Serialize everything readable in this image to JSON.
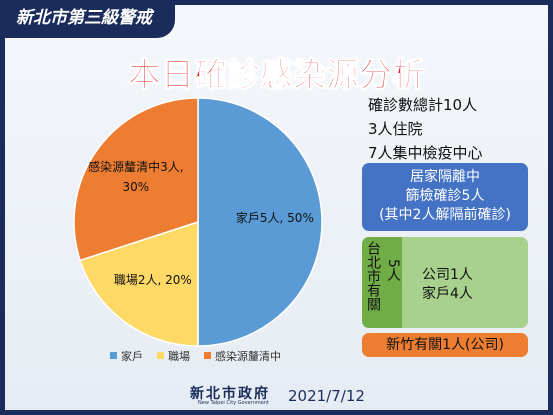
{
  "header": {
    "banner": "新北市第三級警戒",
    "title": "本日確診感染源分析"
  },
  "chart_data": {
    "type": "pie",
    "categories": [
      "家戶",
      "職場",
      "感染源釐清中"
    ],
    "values": [
      50,
      20,
      30
    ],
    "value_labels": [
      "家戶5人, 50%",
      "職場2人, 20%",
      "感染源釐清中3人,\n30%"
    ],
    "colors": [
      "#5b9bd5",
      "#ffd966",
      "#ed7d31"
    ],
    "legend": "bottom"
  },
  "summary": [
    "確診數總計10人",
    "3人住院",
    "7人集中檢疫中心"
  ],
  "home_isolation": [
    "居家隔離中",
    "篩檢確診5人",
    "(其中2人解隔前確診)"
  ],
  "taipei": {
    "label": "台北市有關",
    "count": "5人",
    "details": [
      "公司1人",
      "家戶4人"
    ]
  },
  "hsinchu": "新竹有關1人(公司)",
  "footer": {
    "logo": "新北市政府",
    "logo_en": "New Taipei City Government",
    "date": "2021/7/12"
  }
}
